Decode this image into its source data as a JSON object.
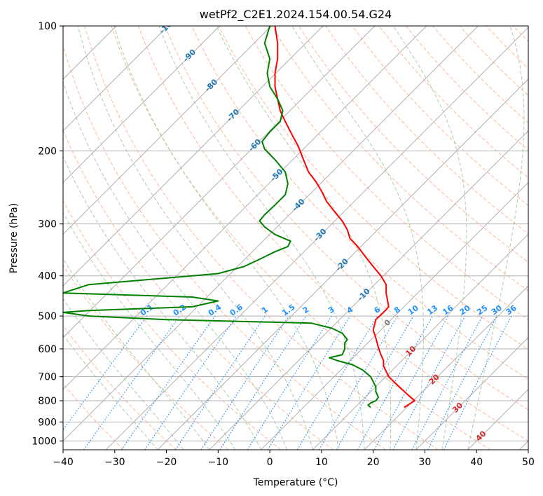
{
  "chart_data": {
    "type": "line",
    "title": "wetPf2_C2E1.2024.154.00.54.G24",
    "xlabel": "Temperature (°C)",
    "ylabel": "Pressure (hPa)",
    "xlim": [
      -40,
      50
    ],
    "ylim": [
      1050,
      100
    ],
    "y_scale": "log",
    "grid": true,
    "x_ticks": [
      -40,
      -30,
      -20,
      -10,
      0,
      10,
      20,
      30,
      40,
      50
    ],
    "y_ticks": [
      100,
      200,
      300,
      400,
      500,
      600,
      700,
      800,
      900,
      1000
    ],
    "skew_isotherm_labels": [
      -100,
      -90,
      -80,
      -70,
      -60,
      -50,
      -40,
      -30,
      -20,
      -10,
      0,
      10,
      20,
      30,
      40
    ],
    "mixing_ratio_labels": [
      "0.1",
      "0.2",
      "0.4",
      "0.6",
      "1",
      "1.5",
      "2",
      "3",
      "4",
      "6",
      "8",
      "10",
      "13",
      "16",
      "20",
      "25",
      "30",
      "36"
    ],
    "colors": {
      "temperature": "#ff0000",
      "dewpoint": "#008000",
      "isotherm_label_cold": "#1f77b4",
      "isotherm_label_zero": "#808080",
      "isotherm_label_warm": "#d62728",
      "mixing_ratio": "#1e90ff",
      "dry_adiabat": "#ffa07a",
      "moist_adiabat": "#90c690",
      "grid": "#b0b0b0"
    },
    "series": [
      {
        "key": "temperature",
        "points": [
          [
            26,
            830
          ],
          [
            27,
            815
          ],
          [
            28,
            800
          ],
          [
            26.5,
            770
          ],
          [
            25,
            740
          ],
          [
            23,
            700
          ],
          [
            22,
            660
          ],
          [
            22,
            640
          ],
          [
            21.5,
            620
          ],
          [
            21,
            595
          ],
          [
            20.5,
            565
          ],
          [
            20,
            540
          ],
          [
            20.5,
            510
          ],
          [
            22,
            490
          ],
          [
            23,
            475
          ],
          [
            22.5,
            440
          ],
          [
            22.5,
            420
          ],
          [
            21.5,
            400
          ],
          [
            20,
            380
          ],
          [
            18.5,
            360
          ],
          [
            17,
            340
          ],
          [
            15.5,
            325
          ],
          [
            15,
            310
          ],
          [
            14,
            295
          ],
          [
            12.5,
            280
          ],
          [
            11,
            265
          ],
          [
            10,
            250
          ],
          [
            9,
            238
          ],
          [
            7.5,
            225
          ],
          [
            6.5,
            210
          ],
          [
            5.5,
            195
          ],
          [
            4,
            180
          ],
          [
            3,
            170
          ],
          [
            2,
            160
          ],
          [
            1.5,
            150
          ],
          [
            1,
            140
          ],
          [
            1,
            130
          ],
          [
            1.5,
            120
          ],
          [
            1.5,
            110
          ],
          [
            1,
            100
          ]
        ]
      },
      {
        "key": "dewpoint",
        "points": [
          [
            19.5,
            830
          ],
          [
            19,
            820
          ],
          [
            19.5,
            810
          ],
          [
            20.5,
            800
          ],
          [
            21,
            785
          ],
          [
            20.5,
            760
          ],
          [
            20.5,
            740
          ],
          [
            20,
            720
          ],
          [
            19.5,
            700
          ],
          [
            18,
            675
          ],
          [
            16,
            655
          ],
          [
            13,
            640
          ],
          [
            11.5,
            630
          ],
          [
            14,
            620
          ],
          [
            14.5,
            600
          ],
          [
            14.5,
            580
          ],
          [
            15,
            570
          ],
          [
            14,
            550
          ],
          [
            12,
            535
          ],
          [
            8,
            520
          ],
          [
            -20,
            510
          ],
          [
            -35,
            500
          ],
          [
            -40,
            490
          ],
          [
            -35,
            485
          ],
          [
            -15,
            475
          ],
          [
            -10,
            460
          ],
          [
            -15,
            450
          ],
          [
            -40,
            440
          ],
          [
            -35,
            420
          ],
          [
            -20,
            405
          ],
          [
            -10,
            395
          ],
          [
            -5,
            380
          ],
          [
            -2,
            365
          ],
          [
            1,
            350
          ],
          [
            3.5,
            340
          ],
          [
            4,
            330
          ],
          [
            1,
            318
          ],
          [
            -1,
            305
          ],
          [
            -2,
            295
          ],
          [
            -1,
            285
          ],
          [
            1,
            270
          ],
          [
            3,
            255
          ],
          [
            3.5,
            240
          ],
          [
            3,
            225
          ],
          [
            1,
            210
          ],
          [
            -1,
            198
          ],
          [
            -1.5,
            190
          ],
          [
            0,
            180
          ],
          [
            2,
            170
          ],
          [
            2.5,
            160
          ],
          [
            1.5,
            150
          ],
          [
            0,
            140
          ],
          [
            -0.5,
            130
          ],
          [
            0,
            120
          ],
          [
            -1,
            110
          ],
          [
            0,
            100
          ]
        ]
      }
    ]
  }
}
